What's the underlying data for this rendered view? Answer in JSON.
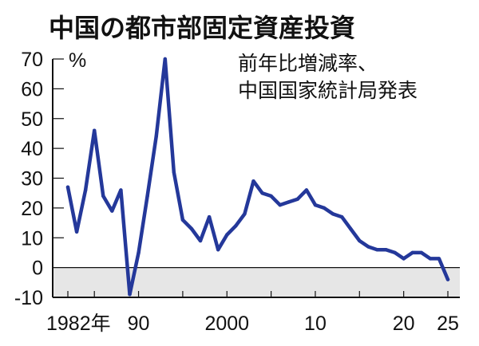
{
  "chart_data": {
    "type": "line",
    "title": "中国の都市部固定資産投資",
    "annotation": [
      "前年比増減率、",
      "中国国家統計局発表"
    ],
    "ylabel": "%",
    "ylim": [
      -10,
      70
    ],
    "yticks": [
      {
        "value": 70,
        "label": "70"
      },
      {
        "value": 60,
        "label": "60"
      },
      {
        "value": 50,
        "label": "50"
      },
      {
        "value": 40,
        "label": "40"
      },
      {
        "value": 30,
        "label": "30"
      },
      {
        "value": 20,
        "label": "20"
      },
      {
        "value": 10,
        "label": "10"
      },
      {
        "value": 0,
        "label": "0"
      },
      {
        "value": -10,
        "label": "-10"
      }
    ],
    "xlim": [
      1982,
      2025
    ],
    "xticks": [
      {
        "value": 1982,
        "label": "1982年"
      },
      {
        "value": 1990,
        "label": "90"
      },
      {
        "value": 2000,
        "label": "2000"
      },
      {
        "value": 2010,
        "label": "10"
      },
      {
        "value": 2020,
        "label": "20"
      },
      {
        "value": 2025,
        "label": "25"
      }
    ],
    "negative_region_shaded": true,
    "line_color": "#24389a",
    "shade_color": "#e6e6e6",
    "series": [
      {
        "x": [
          1982,
          1983,
          1984,
          1985,
          1986,
          1987,
          1988,
          1989,
          1990,
          1991,
          1992,
          1993,
          1994,
          1995,
          1996,
          1997,
          1998,
          1999,
          2000,
          2001,
          2002,
          2003,
          2004,
          2005,
          2006,
          2007,
          2008,
          2009,
          2010,
          2011,
          2012,
          2013,
          2014,
          2015,
          2016,
          2017,
          2018,
          2019,
          2020,
          2021,
          2022,
          2023,
          2024,
          2025
        ],
        "values": [
          27,
          12,
          26,
          46,
          24,
          19,
          26,
          -9,
          5,
          24,
          44,
          70,
          32,
          16,
          13,
          9,
          17,
          6,
          11,
          14,
          18,
          29,
          25,
          24,
          21,
          22,
          23,
          26,
          21,
          20,
          18,
          17,
          13,
          9,
          7,
          6,
          6,
          5,
          3,
          5,
          5,
          3,
          3,
          -4
        ]
      }
    ]
  }
}
